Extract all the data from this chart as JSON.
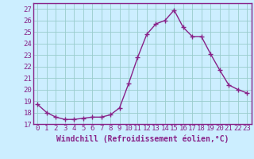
{
  "x": [
    0,
    1,
    2,
    3,
    4,
    5,
    6,
    7,
    8,
    9,
    10,
    11,
    12,
    13,
    14,
    15,
    16,
    17,
    18,
    19,
    20,
    21,
    22,
    23
  ],
  "y": [
    18.7,
    18.0,
    17.6,
    17.4,
    17.4,
    17.5,
    17.6,
    17.6,
    17.8,
    18.4,
    20.5,
    22.8,
    24.8,
    25.7,
    26.0,
    26.9,
    25.4,
    24.6,
    24.6,
    23.1,
    21.7,
    20.4,
    20.0,
    19.7
  ],
  "line_color": "#882288",
  "marker": "+",
  "markersize": 4,
  "linewidth": 1.0,
  "bg_color": "#cceeff",
  "grid_color": "#99cccc",
  "xlabel": "Windchill (Refroidissement éolien,°C)",
  "xlabel_fontsize": 7,
  "tick_fontsize": 6.5,
  "ylim": [
    17,
    27.5
  ],
  "yticks": [
    17,
    18,
    19,
    20,
    21,
    22,
    23,
    24,
    25,
    26,
    27
  ],
  "xlim": [
    -0.5,
    23.5
  ],
  "xticks": [
    0,
    1,
    2,
    3,
    4,
    5,
    6,
    7,
    8,
    9,
    10,
    11,
    12,
    13,
    14,
    15,
    16,
    17,
    18,
    19,
    20,
    21,
    22,
    23
  ],
  "spine_color": "#882288"
}
